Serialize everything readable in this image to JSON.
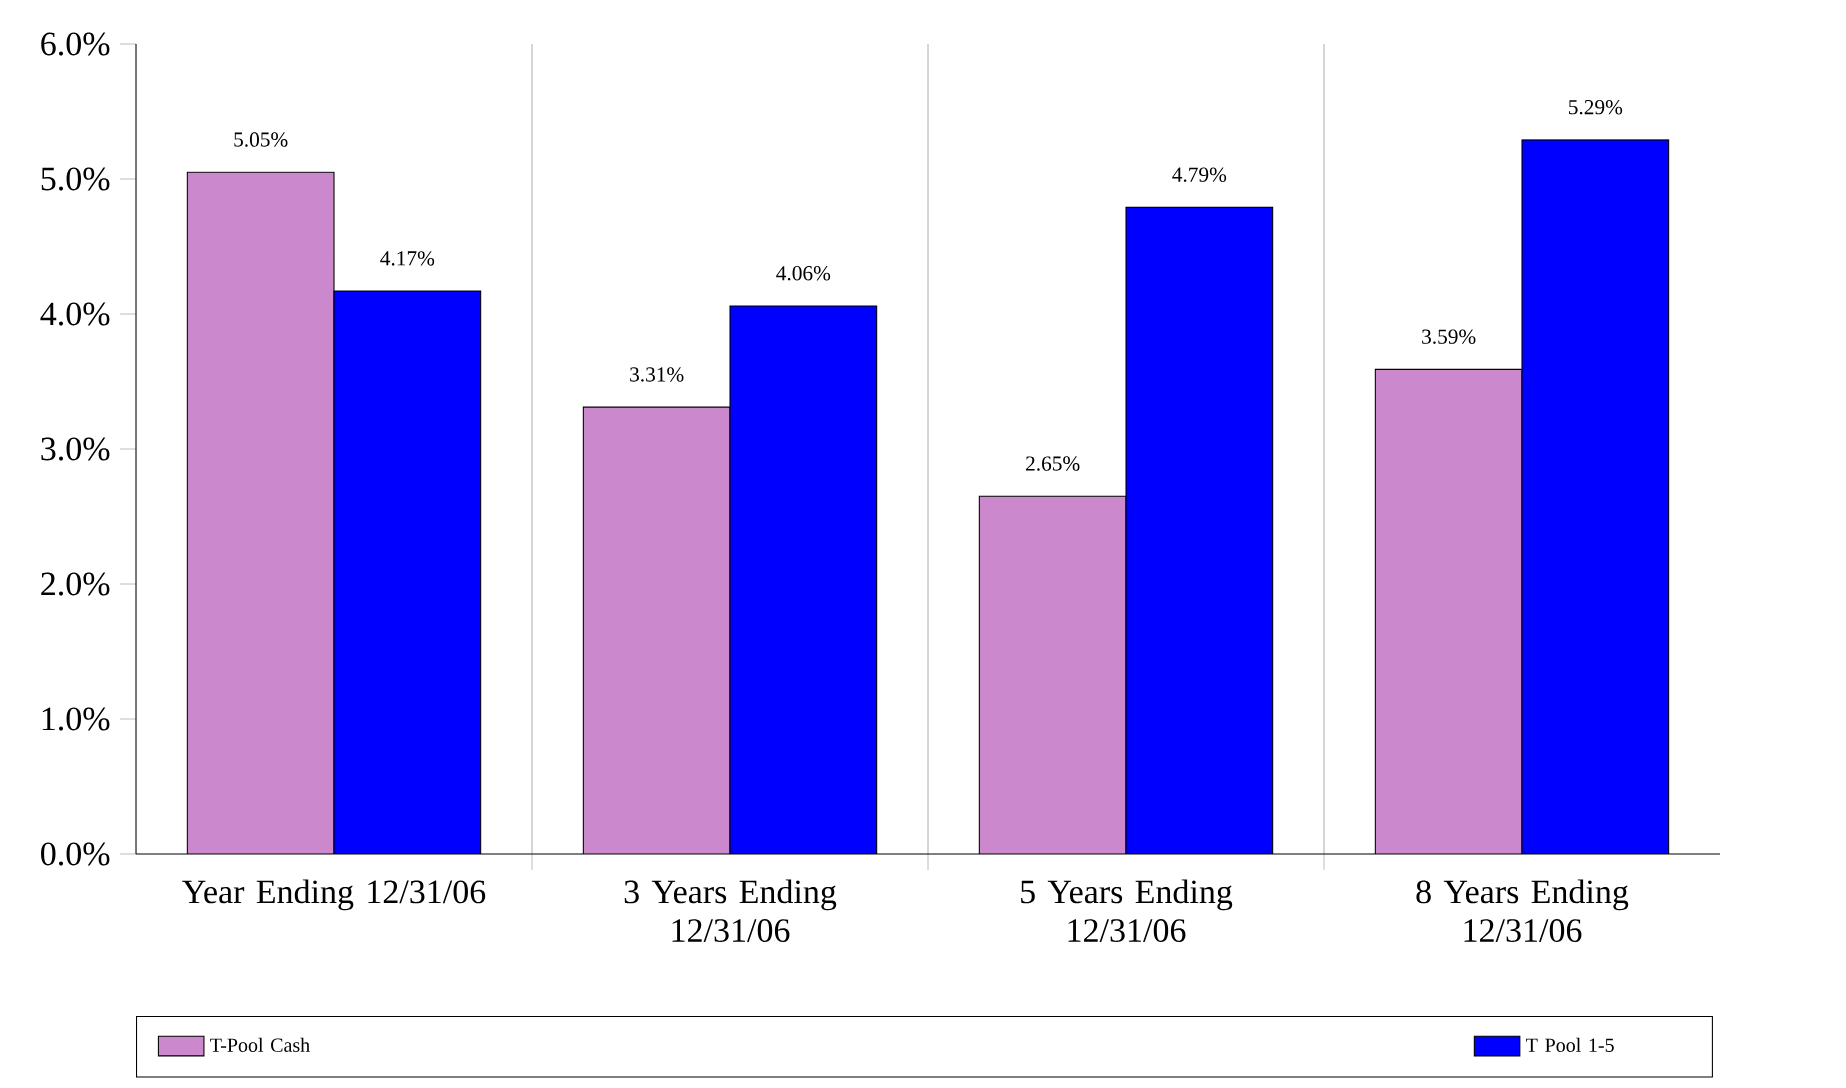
{
  "chart_data": {
    "type": "bar",
    "categories": [
      "Year Ending 12/31/06",
      "3 Years Ending 12/31/06",
      "5 Years Ending 12/31/06",
      "8 Years Ending 12/31/06"
    ],
    "series": [
      {
        "name": "T-Pool Cash",
        "color": "#cc88cc",
        "values": [
          5.05,
          3.31,
          2.65,
          3.59
        ],
        "value_labels": [
          "5.05%",
          "3.31%",
          "2.65%",
          "3.59%"
        ]
      },
      {
        "name": "T Pool 1-5",
        "color": "#0000ff",
        "values": [
          4.17,
          4.06,
          4.79,
          5.29
        ],
        "value_labels": [
          "4.17%",
          "4.06%",
          "4.79%",
          "5.29%"
        ]
      }
    ],
    "ylim": [
      0,
      6
    ],
    "yticks": [
      {
        "value": 0,
        "label": "0.0%"
      },
      {
        "value": 1,
        "label": "1.0%"
      },
      {
        "value": 2,
        "label": "2.0%"
      },
      {
        "value": 3,
        "label": "3.0%"
      },
      {
        "value": 4,
        "label": "4.0%"
      },
      {
        "value": 5,
        "label": "5.0%"
      },
      {
        "value": 6,
        "label": "6.0%"
      }
    ],
    "grid": "x",
    "legend": "bottom"
  }
}
